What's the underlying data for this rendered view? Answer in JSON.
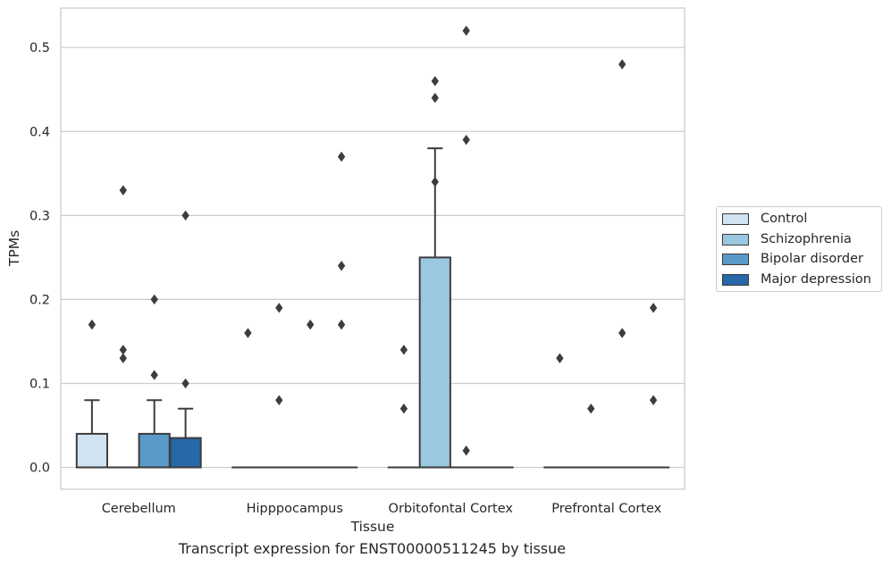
{
  "chart_data": {
    "type": "box",
    "xlabel": "Tissue",
    "ylabel": "TPMs",
    "ylim": [
      -0.026,
      0.547
    ],
    "yticks": [
      0.0,
      0.1,
      0.2,
      0.3,
      0.4,
      0.5
    ],
    "ytick_labels": [
      "0.0",
      "0.1",
      "0.2",
      "0.3",
      "0.4",
      "0.5"
    ],
    "grid": "y",
    "legend_placement": "right",
    "categories": [
      "Cerebellum",
      "Hipppocampus",
      "Orbitofontal Cortex",
      "Prefrontal Cortex"
    ],
    "series": [
      {
        "name": "Control",
        "color": "#d1e2f1",
        "boxes": [
          {
            "q1": 0.0,
            "median": 0.0,
            "q3": 0.04,
            "whisker_low": 0.0,
            "whisker_high": 0.08,
            "outliers": [
              0.17
            ]
          },
          {
            "q1": 0.0,
            "median": 0.0,
            "q3": 0.0,
            "whisker_low": 0.0,
            "whisker_high": 0.0,
            "outliers": [
              0.16
            ]
          },
          {
            "q1": 0.0,
            "median": 0.0,
            "q3": 0.0,
            "whisker_low": 0.0,
            "whisker_high": 0.0,
            "outliers": [
              0.14,
              0.07
            ]
          },
          {
            "q1": 0.0,
            "median": 0.0,
            "q3": 0.0,
            "whisker_low": 0.0,
            "whisker_high": 0.0,
            "outliers": [
              0.13
            ]
          }
        ]
      },
      {
        "name": "Schizophrenia",
        "color": "#9ac8e0",
        "boxes": [
          {
            "q1": 0.0,
            "median": 0.0,
            "q3": 0.0,
            "whisker_low": 0.0,
            "whisker_high": 0.0,
            "outliers": [
              0.33,
              0.14,
              0.13
            ]
          },
          {
            "q1": 0.0,
            "median": 0.0,
            "q3": 0.0,
            "whisker_low": 0.0,
            "whisker_high": 0.0,
            "outliers": [
              0.19,
              0.08
            ]
          },
          {
            "q1": 0.0,
            "median": 0.0,
            "q3": 0.25,
            "whisker_low": 0.0,
            "whisker_high": 0.38,
            "outliers": [
              0.46,
              0.44,
              0.34
            ]
          },
          {
            "q1": 0.0,
            "median": 0.0,
            "q3": 0.0,
            "whisker_low": 0.0,
            "whisker_high": 0.0,
            "outliers": [
              0.07
            ]
          }
        ]
      },
      {
        "name": "Bipolar disorder",
        "color": "#5a9ac8",
        "boxes": [
          {
            "q1": 0.0,
            "median": 0.0,
            "q3": 0.04,
            "whisker_low": 0.0,
            "whisker_high": 0.08,
            "outliers": [
              0.2,
              0.11
            ]
          },
          {
            "q1": 0.0,
            "median": 0.0,
            "q3": 0.0,
            "whisker_low": 0.0,
            "whisker_high": 0.0,
            "outliers": [
              0.17
            ]
          },
          {
            "q1": 0.0,
            "median": 0.0,
            "q3": 0.0,
            "whisker_low": 0.0,
            "whisker_high": 0.0,
            "outliers": [
              0.52,
              0.39,
              0.02
            ]
          },
          {
            "q1": 0.0,
            "median": 0.0,
            "q3": 0.0,
            "whisker_low": 0.0,
            "whisker_high": 0.0,
            "outliers": [
              0.48,
              0.16
            ]
          }
        ]
      },
      {
        "name": "Major depression",
        "color": "#2668a8",
        "boxes": [
          {
            "q1": 0.0,
            "median": 0.0,
            "q3": 0.035,
            "whisker_low": 0.0,
            "whisker_high": 0.07,
            "outliers": [
              0.3,
              0.1
            ]
          },
          {
            "q1": 0.0,
            "median": 0.0,
            "q3": 0.0,
            "whisker_low": 0.0,
            "whisker_high": 0.0,
            "outliers": [
              0.37,
              0.24,
              0.17
            ]
          },
          {
            "q1": 0.0,
            "median": 0.0,
            "q3": 0.0,
            "whisker_low": 0.0,
            "whisker_high": 0.0,
            "outliers": []
          },
          {
            "q1": 0.0,
            "median": 0.0,
            "q3": 0.0,
            "whisker_low": 0.0,
            "whisker_high": 0.0,
            "outliers": [
              0.19,
              0.08
            ]
          }
        ]
      }
    ]
  },
  "caption": "Transcript expression for ENST00000511245 by tissue"
}
